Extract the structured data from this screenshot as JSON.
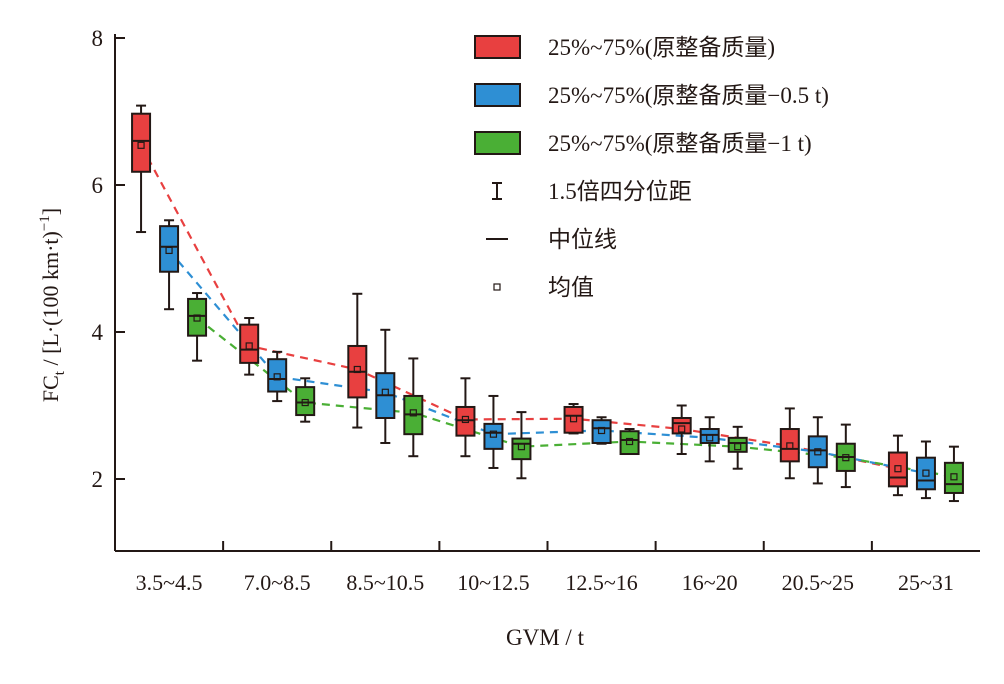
{
  "chart_data": {
    "type": "box",
    "xlabel": "GVM / t",
    "ylabel_main": "FC",
    "ylabel_sub": "t",
    "ylabel_rest": " / [L·(100 km·t)",
    "ylabel_sup": "−1",
    "ylabel_end": "]",
    "ylim": [
      1,
      8
    ],
    "yticks": [
      2,
      4,
      6,
      8
    ],
    "categories": [
      "3.5~4.5",
      "7.0~8.5",
      "8.5~10.5",
      "10~12.5",
      "12.5~16",
      "16~20",
      "20.5~25",
      "25~31"
    ],
    "legend_position": "top-right",
    "series": [
      {
        "name": "25%~75%(原整备质量)",
        "color": "#e84040",
        "boxes": [
          {
            "whisker_low": 5.36,
            "q1": 6.18,
            "median": 6.6,
            "q3": 6.97,
            "whisker_high": 7.08,
            "mean": 6.54
          },
          {
            "whisker_low": 3.42,
            "q1": 3.58,
            "median": 3.76,
            "q3": 4.1,
            "whisker_high": 4.19,
            "mean": 3.81
          },
          {
            "whisker_low": 2.7,
            "q1": 3.11,
            "median": 3.46,
            "q3": 3.81,
            "whisker_high": 4.52,
            "mean": 3.49
          },
          {
            "whisker_low": 2.31,
            "q1": 2.59,
            "median": 2.8,
            "q3": 2.98,
            "whisker_high": 3.37,
            "mean": 2.81
          },
          {
            "whisker_low": 2.62,
            "q1": 2.63,
            "median": 2.86,
            "q3": 2.98,
            "whisker_high": 3.02,
            "mean": 2.82
          },
          {
            "whisker_low": 2.34,
            "q1": 2.62,
            "median": 2.76,
            "q3": 2.83,
            "whisker_high": 3.0,
            "mean": 2.68
          },
          {
            "whisker_low": 2.01,
            "q1": 2.24,
            "median": 2.41,
            "q3": 2.68,
            "whisker_high": 2.96,
            "mean": 2.45
          },
          {
            "whisker_low": 1.78,
            "q1": 1.9,
            "median": 2.02,
            "q3": 2.36,
            "whisker_high": 2.59,
            "mean": 2.14
          }
        ]
      },
      {
        "name": "25%~75%(原整备质量−0.5 t)",
        "color": "#2e8fd4",
        "boxes": [
          {
            "whisker_low": 4.31,
            "q1": 4.82,
            "median": 5.16,
            "q3": 5.44,
            "whisker_high": 5.52,
            "mean": 5.11
          },
          {
            "whisker_low": 3.06,
            "q1": 3.19,
            "median": 3.36,
            "q3": 3.63,
            "whisker_high": 3.73,
            "mean": 3.39
          },
          {
            "whisker_low": 2.49,
            "q1": 2.83,
            "median": 3.14,
            "q3": 3.44,
            "whisker_high": 4.03,
            "mean": 3.18
          },
          {
            "whisker_low": 2.15,
            "q1": 2.41,
            "median": 2.63,
            "q3": 2.75,
            "whisker_high": 3.13,
            "mean": 2.61
          },
          {
            "whisker_low": 2.48,
            "q1": 2.49,
            "median": 2.69,
            "q3": 2.8,
            "whisker_high": 2.84,
            "mean": 2.66
          },
          {
            "whisker_low": 2.24,
            "q1": 2.49,
            "median": 2.6,
            "q3": 2.68,
            "whisker_high": 2.84,
            "mean": 2.56
          },
          {
            "whisker_low": 1.94,
            "q1": 2.16,
            "median": 2.39,
            "q3": 2.58,
            "whisker_high": 2.84,
            "mean": 2.37
          },
          {
            "whisker_low": 1.74,
            "q1": 1.86,
            "median": 1.98,
            "q3": 2.29,
            "whisker_high": 2.51,
            "mean": 2.08
          }
        ]
      },
      {
        "name": "25%~75%(原整备质量−1 t)",
        "color": "#4aaf35",
        "boxes": [
          {
            "whisker_low": 3.61,
            "q1": 3.95,
            "median": 4.22,
            "q3": 4.45,
            "whisker_high": 4.53,
            "mean": 4.19
          },
          {
            "whisker_low": 2.78,
            "q1": 2.87,
            "median": 3.04,
            "q3": 3.25,
            "whisker_high": 3.37,
            "mean": 3.04
          },
          {
            "whisker_low": 2.31,
            "q1": 2.61,
            "median": 2.88,
            "q3": 3.13,
            "whisker_high": 3.64,
            "mean": 2.9
          },
          {
            "whisker_low": 2.01,
            "q1": 2.27,
            "median": 2.48,
            "q3": 2.55,
            "whisker_high": 2.91,
            "mean": 2.44
          },
          {
            "whisker_low": 2.34,
            "q1": 2.34,
            "median": 2.53,
            "q3": 2.65,
            "whisker_high": 2.68,
            "mean": 2.51
          },
          {
            "whisker_low": 2.14,
            "q1": 2.37,
            "median": 2.49,
            "q3": 2.56,
            "whisker_high": 2.71,
            "mean": 2.44
          },
          {
            "whisker_low": 1.89,
            "q1": 2.11,
            "median": 2.3,
            "q3": 2.48,
            "whisker_high": 2.74,
            "mean": 2.29
          },
          {
            "whisker_low": 1.7,
            "q1": 1.81,
            "median": 1.93,
            "q3": 2.22,
            "whisker_high": 2.44,
            "mean": 2.03
          }
        ]
      }
    ],
    "legend_extra": [
      {
        "symbol": "whisker",
        "label": "1.5倍四分位距"
      },
      {
        "symbol": "median",
        "label": "中位线"
      },
      {
        "symbol": "mean",
        "label": "均值"
      }
    ]
  }
}
